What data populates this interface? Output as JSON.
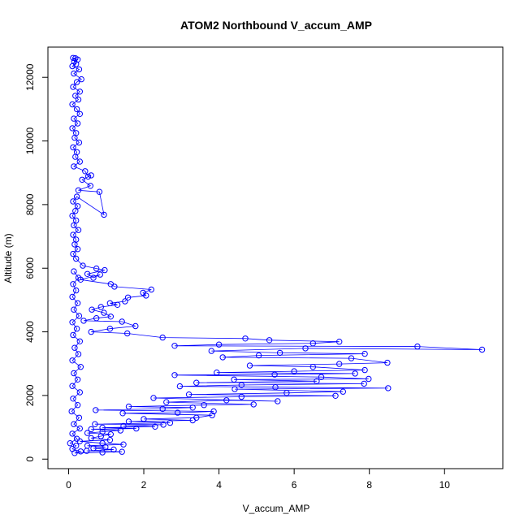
{
  "chart_data": {
    "type": "scatter",
    "title": "ATOM2 Northbound V_accum_AMP",
    "xlabel": "V_accum_AMP",
    "ylabel": "Altitude (m)",
    "xlim": [
      -0.55,
      11.55
    ],
    "ylim": [
      -300,
      12950
    ],
    "x_ticks": [
      0,
      2,
      4,
      6,
      8,
      10
    ],
    "x_tick_labels": [
      "0",
      "2",
      "4",
      "6",
      "8",
      "10"
    ],
    "y_ticks": [
      0,
      2000,
      4000,
      6000,
      8000,
      10000,
      12000
    ],
    "y_tick_labels": [
      "0",
      "2000",
      "4000",
      "6000",
      "8000",
      "10000",
      "12000"
    ],
    "grid": false,
    "legend": "none",
    "style": "points connected by lines (type='o')",
    "marker": "open-circle",
    "series_color": "#0000ff",
    "series": [
      {
        "name": "",
        "points": [
          [
            0.12,
            12610
          ],
          [
            0.18,
            12600
          ],
          [
            0.24,
            12560
          ],
          [
            0.15,
            12500
          ],
          [
            0.2,
            12420
          ],
          [
            0.1,
            12350
          ],
          [
            0.28,
            12250
          ],
          [
            0.14,
            12120
          ],
          [
            0.34,
            11940
          ],
          [
            0.22,
            11850
          ],
          [
            0.12,
            11700
          ],
          [
            0.3,
            11550
          ],
          [
            0.18,
            11420
          ],
          [
            0.26,
            11300
          ],
          [
            0.1,
            11150
          ],
          [
            0.22,
            11000
          ],
          [
            0.3,
            10850
          ],
          [
            0.14,
            10700
          ],
          [
            0.24,
            10550
          ],
          [
            0.1,
            10400
          ],
          [
            0.2,
            10250
          ],
          [
            0.16,
            10100
          ],
          [
            0.28,
            9950
          ],
          [
            0.12,
            9800
          ],
          [
            0.22,
            9650
          ],
          [
            0.18,
            9500
          ],
          [
            0.3,
            9350
          ],
          [
            0.14,
            9200
          ],
          [
            0.44,
            9050
          ],
          [
            0.52,
            8880
          ],
          [
            0.6,
            8920
          ],
          [
            0.36,
            8780
          ],
          [
            0.58,
            8590
          ],
          [
            0.26,
            8450
          ],
          [
            0.82,
            8400
          ],
          [
            0.94,
            7680
          ],
          [
            0.22,
            8250
          ],
          [
            0.12,
            8100
          ],
          [
            0.24,
            7950
          ],
          [
            0.18,
            7800
          ],
          [
            0.1,
            7650
          ],
          [
            0.2,
            7500
          ],
          [
            0.14,
            7350
          ],
          [
            0.26,
            7200
          ],
          [
            0.12,
            7050
          ],
          [
            0.2,
            6900
          ],
          [
            0.16,
            6750
          ],
          [
            0.24,
            6600
          ],
          [
            0.12,
            6450
          ],
          [
            0.2,
            6300
          ],
          [
            0.38,
            6080
          ],
          [
            0.74,
            5990
          ],
          [
            0.96,
            5940
          ],
          [
            0.5,
            5820
          ],
          [
            0.66,
            5700
          ],
          [
            0.84,
            5800
          ],
          [
            0.32,
            5640
          ],
          [
            1.12,
            5500
          ],
          [
            1.22,
            5420
          ],
          [
            2.2,
            5330
          ],
          [
            1.98,
            5230
          ],
          [
            2.06,
            5140
          ],
          [
            1.58,
            5080
          ],
          [
            1.5,
            4960
          ],
          [
            1.1,
            4900
          ],
          [
            1.3,
            4850
          ],
          [
            0.86,
            4780
          ],
          [
            0.62,
            4700
          ],
          [
            0.94,
            4600
          ],
          [
            1.12,
            4480
          ],
          [
            0.74,
            4430
          ],
          [
            0.4,
            4350
          ],
          [
            1.42,
            4320
          ],
          [
            1.78,
            4180
          ],
          [
            1.1,
            4100
          ],
          [
            0.6,
            4000
          ],
          [
            1.56,
            3950
          ],
          [
            2.5,
            3820
          ],
          [
            4.7,
            3790
          ],
          [
            5.34,
            3740
          ],
          [
            7.2,
            3690
          ],
          [
            6.5,
            3640
          ],
          [
            4.0,
            3600
          ],
          [
            2.82,
            3560
          ],
          [
            9.28,
            3540
          ],
          [
            11.0,
            3440
          ],
          [
            6.3,
            3480
          ],
          [
            3.8,
            3400
          ],
          [
            5.62,
            3340
          ],
          [
            7.88,
            3310
          ],
          [
            5.06,
            3260
          ],
          [
            4.1,
            3200
          ],
          [
            7.52,
            3170
          ],
          [
            8.48,
            3030
          ],
          [
            7.2,
            2990
          ],
          [
            4.82,
            2940
          ],
          [
            6.5,
            2900
          ],
          [
            7.88,
            2800
          ],
          [
            6.0,
            2760
          ],
          [
            3.94,
            2720
          ],
          [
            7.62,
            2690
          ],
          [
            5.48,
            2660
          ],
          [
            2.82,
            2640
          ],
          [
            6.72,
            2580
          ],
          [
            7.98,
            2520
          ],
          [
            4.4,
            2500
          ],
          [
            6.6,
            2450
          ],
          [
            3.4,
            2400
          ],
          [
            7.86,
            2370
          ],
          [
            4.6,
            2330
          ],
          [
            2.96,
            2290
          ],
          [
            5.5,
            2260
          ],
          [
            8.5,
            2230
          ],
          [
            4.42,
            2200
          ],
          [
            7.3,
            2120
          ],
          [
            5.8,
            2080
          ],
          [
            3.2,
            2030
          ],
          [
            7.1,
            1990
          ],
          [
            4.6,
            1960
          ],
          [
            2.26,
            1920
          ],
          [
            5.56,
            1820
          ],
          [
            4.2,
            1850
          ],
          [
            2.6,
            1790
          ],
          [
            4.92,
            1720
          ],
          [
            3.6,
            1700
          ],
          [
            1.6,
            1650
          ],
          [
            3.3,
            1620
          ],
          [
            2.5,
            1580
          ],
          [
            0.72,
            1540
          ],
          [
            3.86,
            1500
          ],
          [
            2.9,
            1460
          ],
          [
            1.44,
            1440
          ],
          [
            3.82,
            1380
          ],
          [
            3.4,
            1300
          ],
          [
            2.0,
            1260
          ],
          [
            3.3,
            1220
          ],
          [
            1.6,
            1180
          ],
          [
            2.7,
            1140
          ],
          [
            0.7,
            1100
          ],
          [
            2.52,
            1080
          ],
          [
            1.46,
            1040
          ],
          [
            2.3,
            1020
          ],
          [
            0.9,
            990
          ],
          [
            1.8,
            960
          ],
          [
            0.6,
            940
          ],
          [
            1.38,
            900
          ],
          [
            0.9,
            860
          ],
          [
            0.5,
            820
          ],
          [
            1.12,
            780
          ],
          [
            0.86,
            720
          ],
          [
            0.6,
            660
          ],
          [
            1.1,
            600
          ],
          [
            0.3,
            560
          ],
          [
            0.9,
            500
          ],
          [
            1.46,
            460
          ],
          [
            0.5,
            420
          ],
          [
            0.98,
            380
          ],
          [
            0.66,
            340
          ],
          [
            1.2,
            300
          ],
          [
            0.48,
            260
          ],
          [
            1.42,
            230
          ],
          [
            0.9,
            210
          ],
          [
            0.16,
            190
          ],
          [
            0.32,
            240
          ],
          [
            0.1,
            320
          ],
          [
            0.2,
            420
          ],
          [
            0.04,
            500
          ],
          [
            0.22,
            640
          ],
          [
            0.1,
            800
          ],
          [
            0.3,
            960
          ],
          [
            0.14,
            1100
          ],
          [
            0.28,
            1300
          ],
          [
            0.08,
            1500
          ],
          [
            0.24,
            1700
          ],
          [
            0.12,
            1900
          ],
          [
            0.3,
            2100
          ],
          [
            0.1,
            2300
          ],
          [
            0.24,
            2500
          ],
          [
            0.14,
            2700
          ],
          [
            0.32,
            2900
          ],
          [
            0.1,
            3100
          ],
          [
            0.26,
            3300
          ],
          [
            0.16,
            3500
          ],
          [
            0.3,
            3700
          ],
          [
            0.12,
            3900
          ],
          [
            0.22,
            4100
          ],
          [
            0.1,
            4300
          ],
          [
            0.28,
            4500
          ],
          [
            0.14,
            4700
          ],
          [
            0.24,
            4900
          ],
          [
            0.1,
            5100
          ],
          [
            0.2,
            5300
          ],
          [
            0.12,
            5500
          ],
          [
            0.26,
            5700
          ],
          [
            0.14,
            5900
          ]
        ]
      }
    ]
  }
}
